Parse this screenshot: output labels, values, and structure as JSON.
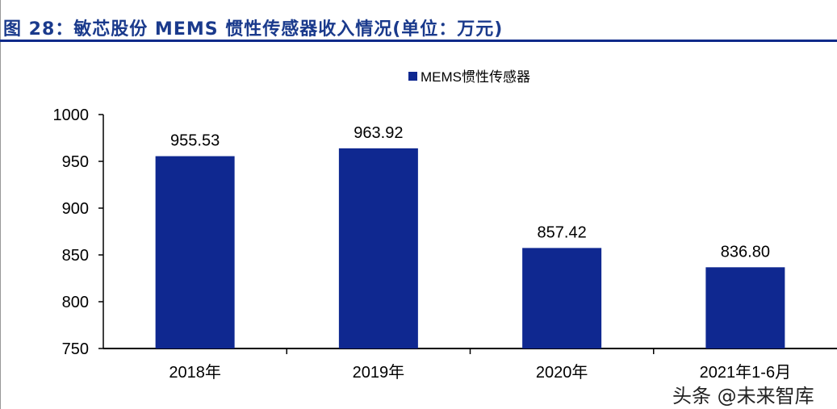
{
  "title": "图 28：敏芯股份 MEMS 惯性传感器收入情况(单位：万元)",
  "watermark": "头条 @未来智库",
  "chart_data": {
    "type": "bar",
    "categories": [
      "2018年",
      "2019年",
      "2020年",
      "2021年1-6月"
    ],
    "series": [
      {
        "name": "MEMS惯性传感器",
        "values": [
          955.53,
          963.92,
          857.42,
          836.8
        ],
        "labels": [
          "955.53",
          "963.92",
          "857.42",
          "836.80"
        ]
      }
    ],
    "ylim": [
      750,
      1000
    ],
    "yticks": [
      750,
      800,
      850,
      900,
      950,
      1000
    ],
    "legend": "top-center",
    "grid": false,
    "bar_color": "#0f2890"
  }
}
